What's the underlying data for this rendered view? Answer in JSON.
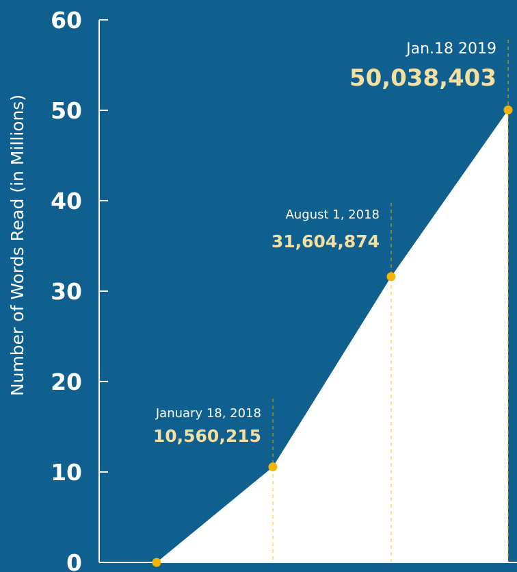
{
  "colors": {
    "background": "#0f5f8f",
    "fill": "#ffffff",
    "axis": "#ffffff",
    "marker": "#f2b705",
    "highlight": "#f3dfa2"
  },
  "chart_data": {
    "type": "area",
    "title": "",
    "xlabel": "",
    "ylabel": "Number of Words Read (in Millions)",
    "ylim": [
      0,
      60
    ],
    "yticks": [
      "0",
      "10",
      "20",
      "30",
      "40",
      "50",
      "60"
    ],
    "grid": false,
    "legend": "none",
    "series": [
      {
        "values": [
          0,
          10.560215,
          31.604874,
          50.038403
        ]
      }
    ],
    "annotations": [
      {
        "date": "January 18, 2018",
        "value": "10,560,215"
      },
      {
        "date": "August 1, 2018",
        "value": "31,604,874"
      },
      {
        "date": "Jan.18 2019",
        "value": "50,038,403"
      }
    ]
  }
}
